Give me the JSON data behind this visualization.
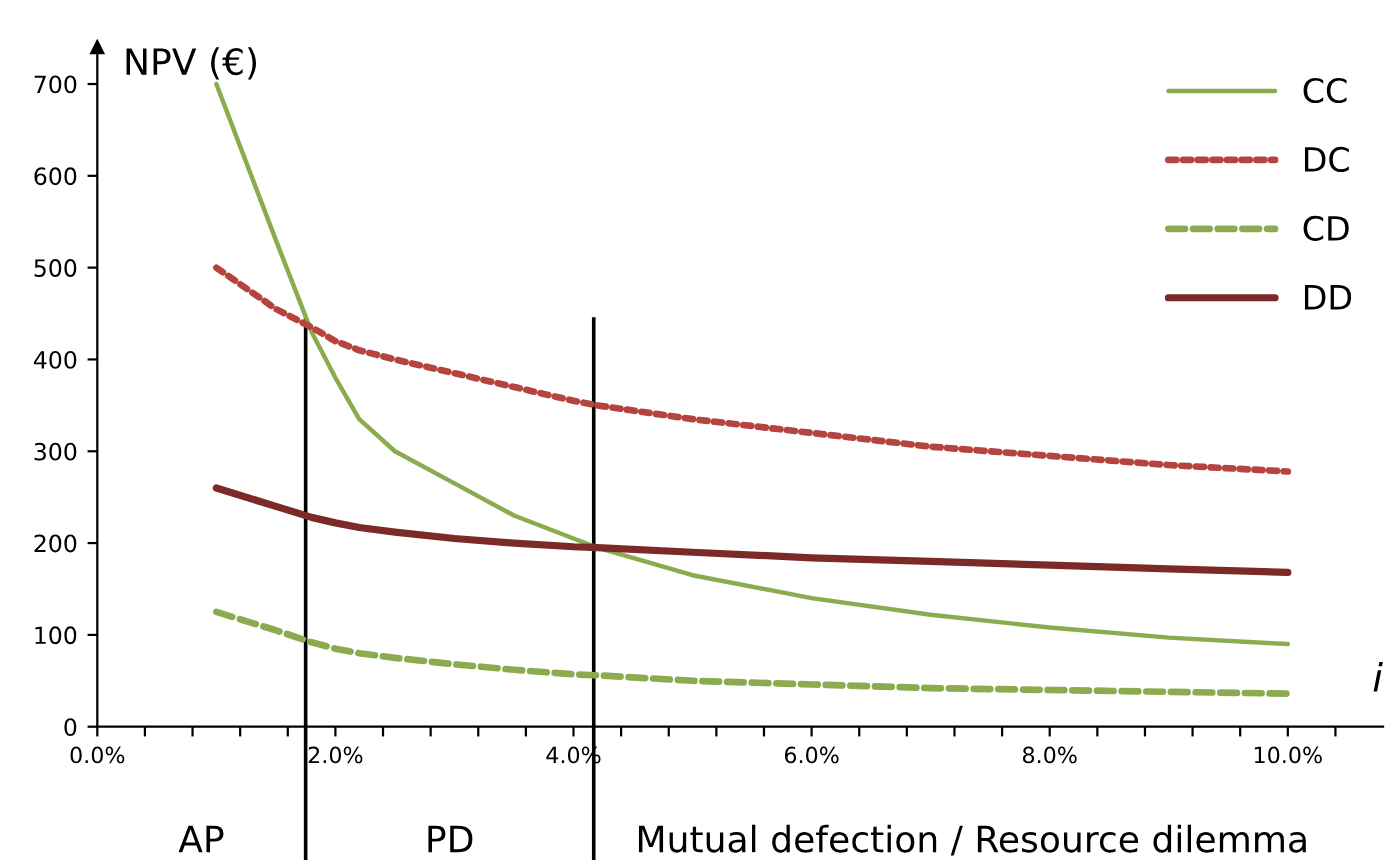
{
  "chart_data": {
    "type": "line",
    "ylabel": "NPV (€)",
    "xlabel": "i",
    "x": [
      1.0,
      1.5,
      1.8,
      2.0,
      2.2,
      2.5,
      3.0,
      3.5,
      4.0,
      4.2,
      5.0,
      6.0,
      7.0,
      8.0,
      9.0,
      10.0
    ],
    "series": [
      {
        "name": "CC",
        "color": "#8aab4e",
        "line_style": "solid",
        "values": [
          700,
          530,
          430,
          380,
          335,
          300,
          265,
          230,
          205,
          195,
          165,
          140,
          122,
          108,
          97,
          90
        ]
      },
      {
        "name": "DC",
        "color": "#b5443f",
        "line_style": "dotted",
        "values": [
          500,
          455,
          435,
          420,
          410,
          400,
          385,
          370,
          355,
          350,
          335,
          320,
          305,
          295,
          285,
          278
        ]
      },
      {
        "name": "CD",
        "color": "#8aab4e",
        "line_style": "dashed",
        "values": [
          125,
          105,
          92,
          85,
          80,
          75,
          68,
          62,
          57,
          56,
          50,
          46,
          42,
          40,
          38,
          36
        ]
      },
      {
        "name": "DD",
        "color": "#7b2a28",
        "line_style": "solid",
        "values": [
          260,
          240,
          228,
          222,
          217,
          212,
          205,
          200,
          196,
          195,
          190,
          184,
          180,
          176,
          172,
          168
        ]
      }
    ],
    "xlim": [
      0,
      10.8
    ],
    "ylim": [
      0,
      740
    ],
    "xticks": [
      {
        "value": 0,
        "label": "0.0%"
      },
      {
        "value": 0.4,
        "label": null
      },
      {
        "value": 0.8,
        "label": null
      },
      {
        "value": 1.2,
        "label": null
      },
      {
        "value": 1.6,
        "label": null
      },
      {
        "value": 2,
        "label": "2.0%"
      },
      {
        "value": 2.4,
        "label": null
      },
      {
        "value": 2.8,
        "label": null
      },
      {
        "value": 3.2,
        "label": null
      },
      {
        "value": 3.6,
        "label": null
      },
      {
        "value": 4,
        "label": "4.0%"
      },
      {
        "value": 4.4,
        "label": null
      },
      {
        "value": 4.8,
        "label": null
      },
      {
        "value": 5.2,
        "label": null
      },
      {
        "value": 5.6,
        "label": null
      },
      {
        "value": 6,
        "label": "6.0%"
      },
      {
        "value": 6.4,
        "label": null
      },
      {
        "value": 6.8,
        "label": null
      },
      {
        "value": 7.2,
        "label": null
      },
      {
        "value": 7.6,
        "label": null
      },
      {
        "value": 8,
        "label": "8.0%"
      },
      {
        "value": 8.4,
        "label": null
      },
      {
        "value": 8.8,
        "label": null
      },
      {
        "value": 9.2,
        "label": null
      },
      {
        "value": 9.6,
        "label": null
      },
      {
        "value": 10,
        "label": "10.0%"
      },
      {
        "value": 10.4,
        "label": null
      }
    ],
    "yticks": [
      0,
      100,
      200,
      300,
      400,
      500,
      600,
      700
    ],
    "ref_lines": [
      {
        "axis": "x",
        "value": 1.75,
        "label": null,
        "color": "#000000"
      },
      {
        "axis": "x",
        "value": 4.17,
        "label": null,
        "color": "#000000"
      }
    ],
    "annotations": [
      "AP",
      "PD",
      "Mutual defection / Resource dilemma"
    ],
    "legend": "top right",
    "grid": false,
    "marker": "none"
  }
}
